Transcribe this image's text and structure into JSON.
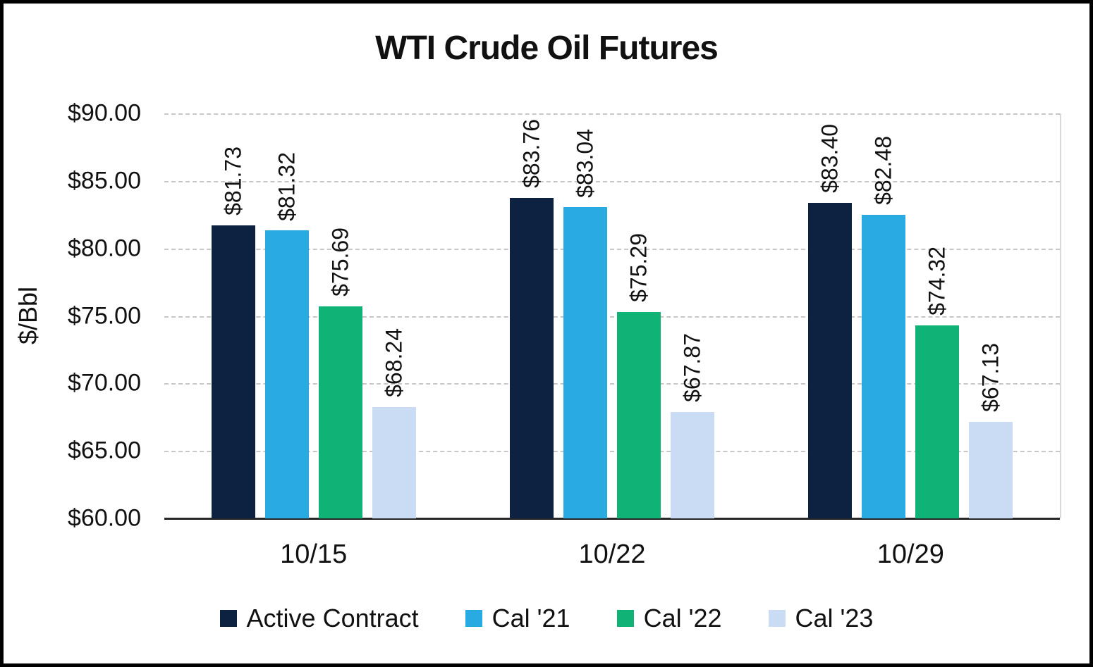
{
  "chart_data": {
    "type": "bar",
    "title": "WTI Crude Oil Futures",
    "xlabel": "",
    "ylabel": "$/Bbl",
    "categories": [
      "10/15",
      "10/22",
      "10/29"
    ],
    "series": [
      {
        "name": "Active Contract",
        "color": "#0D2240",
        "values": [
          81.73,
          83.76,
          83.4
        ],
        "labels": [
          "$81.73",
          "$83.76",
          "$83.40"
        ]
      },
      {
        "name": "Cal '21",
        "color": "#29ABE2",
        "values": [
          81.32,
          83.04,
          82.48
        ],
        "labels": [
          "$81.32",
          "$83.04",
          "$82.48"
        ]
      },
      {
        "name": "Cal '22",
        "color": "#0FB375",
        "values": [
          75.69,
          75.29,
          74.32
        ],
        "labels": [
          "$75.69",
          "$75.29",
          "$74.32"
        ]
      },
      {
        "name": "Cal '23",
        "color": "#C9DCF4",
        "values": [
          68.24,
          67.87,
          67.13
        ],
        "labels": [
          "$68.24",
          "$67.87",
          "$67.13"
        ]
      }
    ],
    "ylim": [
      60,
      90
    ],
    "ytick_step": 5,
    "ytick_labels": [
      "$60.00",
      "$65.00",
      "$70.00",
      "$75.00",
      "$80.00",
      "$85.00",
      "$90.00"
    ],
    "grid": "horizontal-dashed",
    "legend_position": "bottom"
  }
}
